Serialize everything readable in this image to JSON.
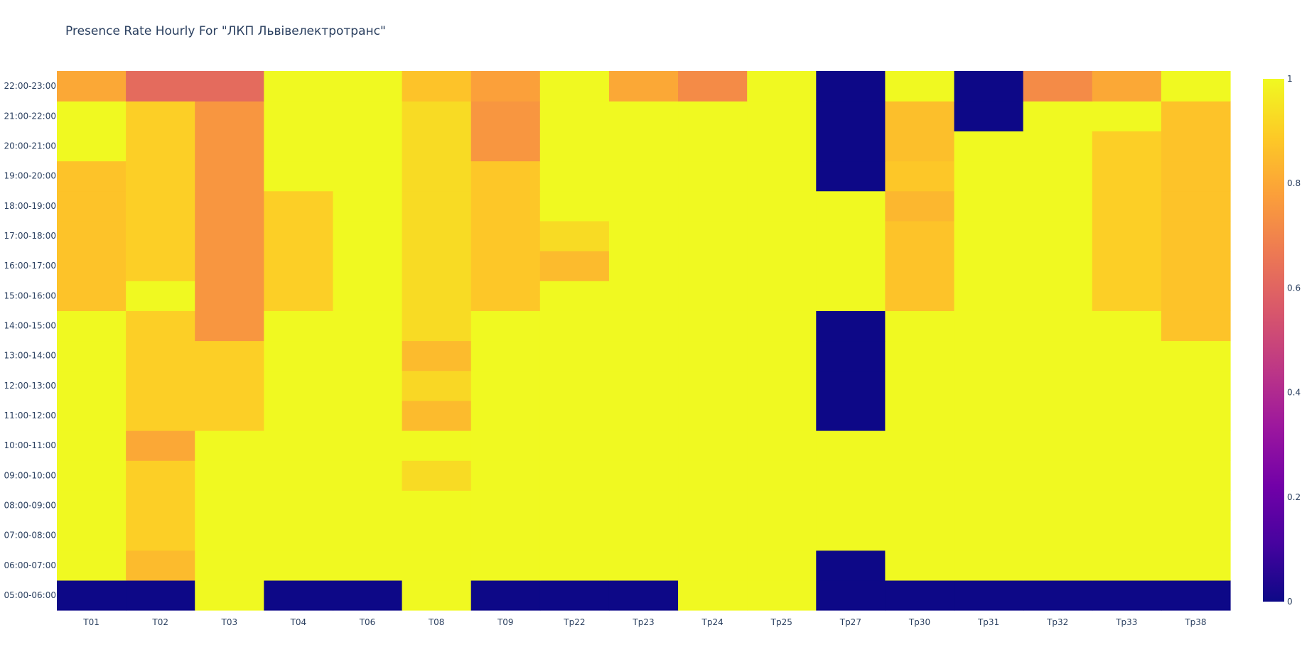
{
  "chart_data": {
    "type": "heatmap",
    "title": "Presence Rate Hourly For \"ЛКП Львівелектротранс\"",
    "xlabel": "",
    "ylabel": "",
    "x": [
      "T01",
      "T02",
      "T03",
      "T04",
      "T06",
      "T08",
      "T09",
      "Тр22",
      "Тр23",
      "Тр24",
      "Тр25",
      "Тр27",
      "Тр30",
      "Тр31",
      "Тр32",
      "Тр33",
      "Тр38"
    ],
    "y": [
      "05:00-06:00",
      "06:00-07:00",
      "07:00-08:00",
      "08:00-09:00",
      "09:00-10:00",
      "10:00-11:00",
      "11:00-12:00",
      "12:00-13:00",
      "13:00-14:00",
      "14:00-15:00",
      "15:00-16:00",
      "16:00-17:00",
      "17:00-18:00",
      "18:00-19:00",
      "19:00-20:00",
      "20:00-21:00",
      "21:00-22:00",
      "22:00-23:00"
    ],
    "z": [
      [
        0,
        0,
        1,
        0,
        0,
        1,
        0,
        0,
        0,
        1,
        1,
        0,
        0,
        0,
        0,
        0,
        0
      ],
      [
        1,
        0.85,
        1,
        1,
        1,
        1,
        1,
        1,
        1,
        1,
        1,
        0,
        1,
        1,
        1,
        1,
        1
      ],
      [
        1,
        0.9,
        1,
        1,
        1,
        1,
        1,
        1,
        1,
        1,
        1,
        1,
        1,
        1,
        1,
        1,
        1
      ],
      [
        1,
        0.9,
        1,
        1,
        1,
        1,
        1,
        1,
        1,
        1,
        1,
        1,
        1,
        1,
        1,
        1,
        1
      ],
      [
        1,
        0.9,
        1,
        1,
        1,
        0.93,
        1,
        1,
        1,
        1,
        1,
        1,
        1,
        1,
        1,
        1,
        1
      ],
      [
        1,
        0.8,
        1,
        1,
        1,
        1,
        1,
        1,
        1,
        1,
        1,
        1,
        1,
        1,
        1,
        1,
        1
      ],
      [
        1,
        0.9,
        0.9,
        1,
        1,
        0.85,
        1,
        1,
        1,
        1,
        1,
        0,
        1,
        1,
        1,
        1,
        1
      ],
      [
        1,
        0.9,
        0.9,
        1,
        1,
        0.92,
        1,
        1,
        1,
        1,
        1,
        0,
        1,
        1,
        1,
        1,
        1
      ],
      [
        1,
        0.9,
        0.9,
        1,
        1,
        0.85,
        1,
        1,
        1,
        1,
        1,
        0,
        1,
        1,
        1,
        1,
        1
      ],
      [
        1,
        0.9,
        0.75,
        1,
        1,
        0.93,
        1,
        1,
        1,
        1,
        1,
        0,
        1,
        1,
        1,
        1,
        0.87
      ],
      [
        0.87,
        1,
        0.75,
        0.9,
        1,
        0.93,
        0.88,
        1,
        1,
        1,
        1,
        1,
        0.87,
        1,
        1,
        0.9,
        0.87
      ],
      [
        0.87,
        0.9,
        0.75,
        0.9,
        1,
        0.93,
        0.88,
        0.85,
        1,
        1,
        1,
        1,
        0.87,
        1,
        1,
        0.9,
        0.87
      ],
      [
        0.87,
        0.9,
        0.75,
        0.9,
        1,
        0.93,
        0.88,
        0.93,
        1,
        1,
        1,
        1,
        0.87,
        1,
        1,
        0.9,
        0.87
      ],
      [
        0.87,
        0.9,
        0.75,
        0.9,
        1,
        0.93,
        0.88,
        1,
        1,
        1,
        1,
        1,
        0.84,
        1,
        1,
        0.9,
        0.87
      ],
      [
        0.87,
        0.9,
        0.75,
        1,
        1,
        0.93,
        0.88,
        1,
        1,
        1,
        1,
        0,
        0.88,
        1,
        1,
        0.9,
        0.87
      ],
      [
        1,
        0.9,
        0.75,
        1,
        1,
        0.93,
        0.75,
        1,
        1,
        1,
        1,
        0,
        0.86,
        1,
        1,
        0.9,
        0.87
      ],
      [
        1,
        0.9,
        0.75,
        1,
        1,
        0.93,
        0.75,
        1,
        1,
        1,
        1,
        0,
        0.86,
        0,
        1,
        1,
        0.87
      ],
      [
        0.8,
        0.62,
        0.62,
        1,
        1,
        0.87,
        0.78,
        1,
        0.8,
        0.72,
        1,
        0,
        1,
        0,
        0.72,
        0.8,
        1
      ]
    ],
    "zrange": [
      0,
      1
    ],
    "colorscale": [
      "#0d0887",
      "#46039f",
      "#7201a8",
      "#9c179e",
      "#bd3786",
      "#d8576b",
      "#ed7953",
      "#fb9f3a",
      "#fdca26",
      "#f0f921"
    ],
    "colorbar_ticks": [
      "0",
      "0.2",
      "0.4",
      "0.6",
      "0.8",
      "1"
    ],
    "legend": "colorbar-right",
    "grid": false
  }
}
